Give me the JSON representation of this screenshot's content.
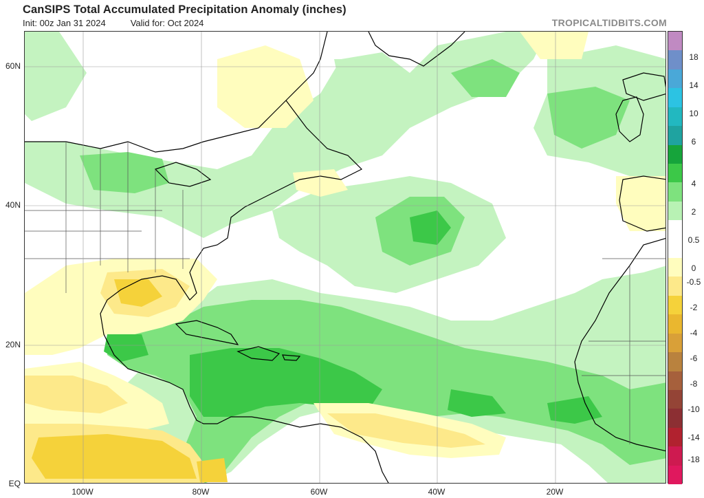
{
  "title": "CanSIPS Total Accumulated Precipitation Anomaly (inches)",
  "init": "Init: 00z Jan 31 2024",
  "valid": "Valid for: Oct 2024",
  "brand": "TROPICALTIDBITS.COM",
  "lat_labels": [
    "60N",
    "40N",
    "20N",
    "EQ"
  ],
  "lon_labels": [
    "100W",
    "80W",
    "60W",
    "40W",
    "20W"
  ],
  "colorbar": {
    "labels": [
      "18",
      "14",
      "10",
      "6",
      "4",
      "2",
      "0.5",
      "0",
      "-0.5",
      "-2",
      "-4",
      "-6",
      "-8",
      "-10",
      "-14",
      "-18"
    ],
    "colors": [
      "#c08ac2",
      "#6f8fc9",
      "#4aa8d8",
      "#2cc3e3",
      "#22b8c0",
      "#1fa3a0",
      "#16a43b",
      "#3cc848",
      "#7ee27e",
      "#b8f2b4",
      "#ffffff",
      "#ffffff",
      "#fffdbe",
      "#fde98a",
      "#f5d23a",
      "#eab72f",
      "#d9a038",
      "#b9823e",
      "#a6603c",
      "#944436",
      "#8c2f33",
      "#b1222f",
      "#ce1a50",
      "#e0185e"
    ]
  }
}
